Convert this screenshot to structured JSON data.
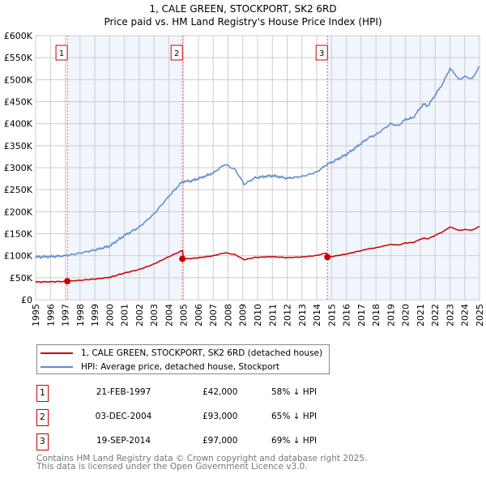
{
  "chart_data": {
    "type": "line",
    "title": "1, CALE GREEN, STOCKPORT, SK2 6RD",
    "subtitle": "Price paid vs. HM Land Registry's House Price Index (HPI)",
    "xlim": [
      1995,
      2025
    ],
    "ylim": [
      0,
      600000
    ],
    "x_ticks": [
      "1995",
      "1996",
      "1997",
      "1998",
      "1999",
      "2000",
      "2001",
      "2002",
      "2003",
      "2004",
      "2005",
      "2006",
      "2007",
      "2008",
      "2009",
      "2010",
      "2011",
      "2012",
      "2013",
      "2014",
      "2015",
      "2016",
      "2017",
      "2018",
      "2019",
      "2020",
      "2021",
      "2022",
      "2023",
      "2024",
      "2025"
    ],
    "y_ticks": [
      "£0",
      "£50K",
      "£100K",
      "£150K",
      "£200K",
      "£250K",
      "£300K",
      "£350K",
      "£400K",
      "£450K",
      "£500K",
      "£550K",
      "£600K"
    ],
    "grid": true,
    "series": [
      {
        "name": "HPI: Average price, detached house, Stockport",
        "color": "#5b8bd0",
        "points": [
          [
            1995,
            97000
          ],
          [
            1996,
            98000
          ],
          [
            1997,
            100000
          ],
          [
            1998,
            106000
          ],
          [
            1999,
            113000
          ],
          [
            2000,
            122000
          ],
          [
            2001,
            146000
          ],
          [
            2002,
            165000
          ],
          [
            2003,
            195000
          ],
          [
            2004,
            235000
          ],
          [
            2004.9,
            268000
          ],
          [
            2005.5,
            270000
          ],
          [
            2006,
            275000
          ],
          [
            2007,
            288000
          ],
          [
            2007.8,
            308000
          ],
          [
            2008.5,
            295000
          ],
          [
            2009.1,
            262000
          ],
          [
            2009.8,
            277000
          ],
          [
            2011,
            282000
          ],
          [
            2012,
            276000
          ],
          [
            2013,
            280000
          ],
          [
            2014,
            290000
          ],
          [
            2014.7,
            308000
          ],
          [
            2015,
            312000
          ],
          [
            2016,
            330000
          ],
          [
            2017,
            355000
          ],
          [
            2017.5,
            368000
          ],
          [
            2018,
            375000
          ],
          [
            2019,
            400000
          ],
          [
            2019.5,
            395000
          ],
          [
            2020,
            410000
          ],
          [
            2020.5,
            413000
          ],
          [
            2021.2,
            445000
          ],
          [
            2021.5,
            440000
          ],
          [
            2022,
            465000
          ],
          [
            2022.5,
            490000
          ],
          [
            2023,
            525000
          ],
          [
            2023.3,
            515000
          ],
          [
            2023.6,
            500000
          ],
          [
            2024,
            507000
          ],
          [
            2024.5,
            502000
          ],
          [
            2025,
            530000
          ]
        ]
      },
      {
        "name": "1, CALE GREEN, STOCKPORT, SK2 6RD (detached house)",
        "color": "#cc0000",
        "derived_from_hpi": true
      }
    ],
    "sales": [
      {
        "id": "1",
        "x": 1997.14,
        "value": 42000
      },
      {
        "id": "2",
        "x": 2004.92,
        "value": 93000
      },
      {
        "id": "3",
        "x": 2014.72,
        "value": 97000
      }
    ]
  },
  "legend": {
    "property": "1, CALE GREEN, STOCKPORT, SK2 6RD (detached house)",
    "hpi": "HPI: Average price, detached house, Stockport"
  },
  "transactions": [
    {
      "num": "1",
      "date": "21-FEB-1997",
      "price": "£42,000",
      "hpi": "58% ↓ HPI"
    },
    {
      "num": "2",
      "date": "03-DEC-2004",
      "price": "£93,000",
      "hpi": "65% ↓ HPI"
    },
    {
      "num": "3",
      "date": "19-SEP-2014",
      "price": "£97,000",
      "hpi": "69% ↓ HPI"
    }
  ],
  "footer": {
    "line1": "Contains HM Land Registry data © Crown copyright and database right 2025.",
    "line2": "This data is licensed under the Open Government Licence v3.0."
  }
}
